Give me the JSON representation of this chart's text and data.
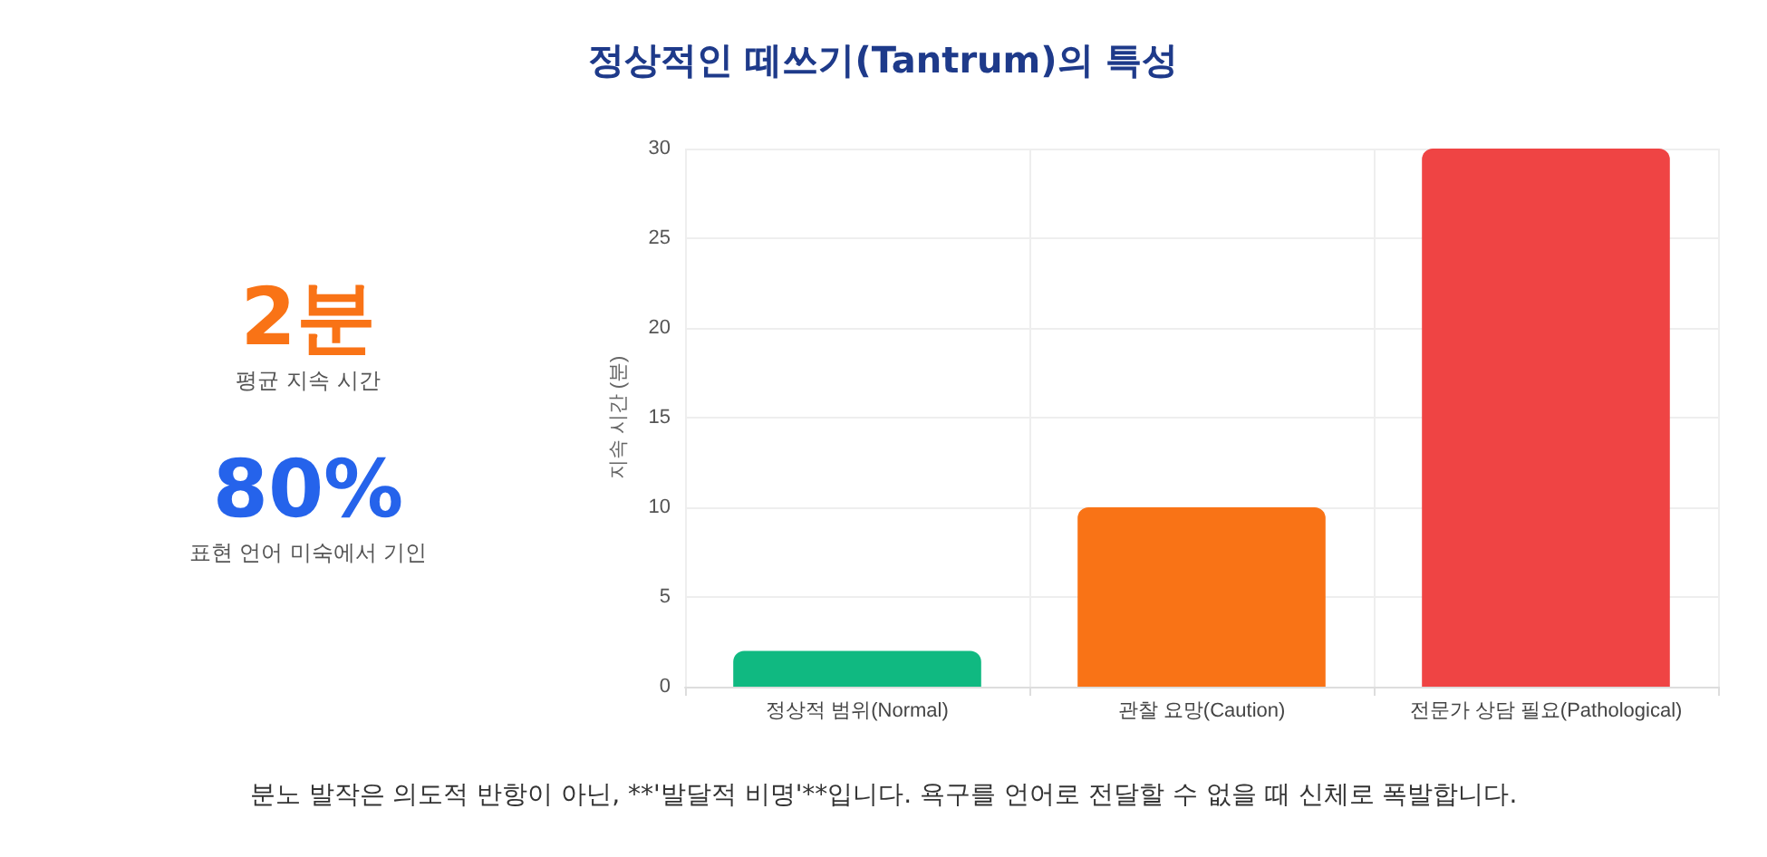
{
  "chart_data": [
    {
      "type": "other",
      "annotations": [
        "2분",
        "평균 지속 시간",
        "80%",
        "표현 언어 미숙에서 기인"
      ]
    },
    {
      "type": "bar",
      "title": "정상적인 떼쓰기(Tantrum)의 특성",
      "ylabel": "지속 시간 (분)",
      "categories": [
        "정상적 범위(Normal)",
        "관찰 요망(Caution)",
        "전문가 상담 필요(Pathological)"
      ],
      "values": [
        2,
        10,
        30
      ],
      "colors": [
        "#10b981",
        "#f97316",
        "#ef4444"
      ],
      "ylim": [
        0,
        30
      ],
      "yticks": [
        0,
        5,
        10,
        15,
        20,
        25,
        30
      ],
      "grid": true,
      "annotations": [
        "분노 발작은 의도적 반항이 아닌, **'발달적 비명'**입니다. 욕구를 언어로 전달할 수 없을 때 신체로 폭발합니다."
      ]
    }
  ]
}
